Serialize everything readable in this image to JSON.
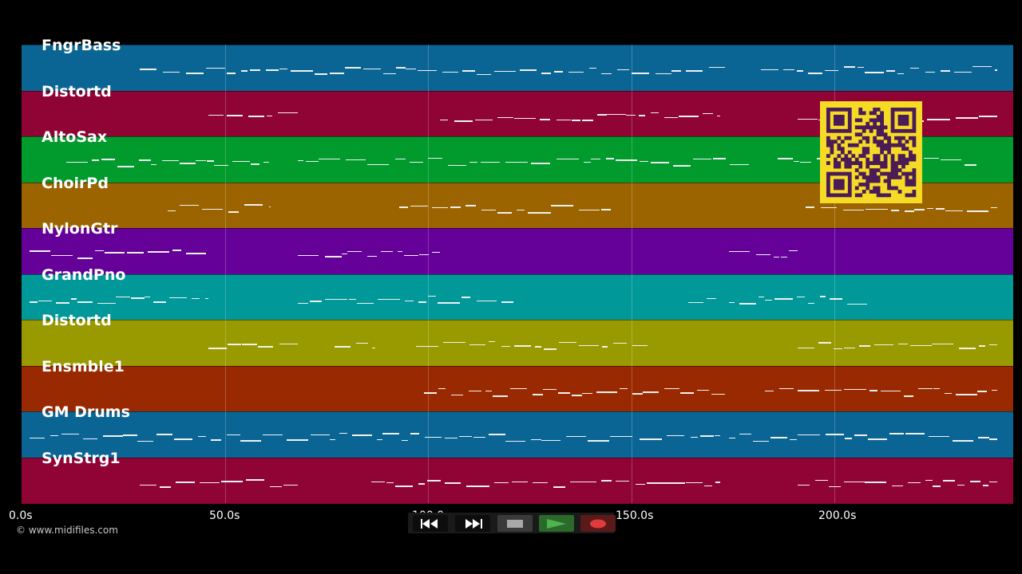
{
  "colors": {
    "background": "#000000",
    "note": "#f1f1f1",
    "qr_background": "#f6db26",
    "qr_module": "#4a1b57"
  },
  "timeline": {
    "unit": "s",
    "start": 0,
    "end": 243.8,
    "tick_labels": [
      "0.0s",
      "50.0s",
      "100.0s",
      "150.0s",
      "200.0s"
    ],
    "tick_values": [
      0,
      50,
      100,
      150,
      200
    ]
  },
  "tracks": [
    {
      "name": "FngrBass",
      "color": "#0a6595",
      "segments": [
        [
          29,
          173
        ],
        [
          182,
          240
        ]
      ]
    },
    {
      "name": "Distortd",
      "color": "#8f0335",
      "segments": [
        [
          46,
          68
        ],
        [
          103,
          144
        ],
        [
          144,
          172
        ],
        [
          191,
          240
        ]
      ]
    },
    {
      "name": "AltoSax",
      "color": "#019a2d",
      "segments": [
        [
          11,
          61
        ],
        [
          68,
          140
        ],
        [
          140,
          180
        ],
        [
          186,
          235
        ]
      ]
    },
    {
      "name": "ChoirPd",
      "color": "#9c6400",
      "segments": [
        [
          36,
          61
        ],
        [
          93,
          145
        ],
        [
          193,
          240
        ]
      ]
    },
    {
      "name": "NylonGtr",
      "color": "#650198",
      "segments": [
        [
          2,
          46
        ],
        [
          68,
          103
        ],
        [
          174,
          191
        ]
      ]
    },
    {
      "name": "GrandPno",
      "color": "#009898",
      "segments": [
        [
          2,
          46
        ],
        [
          68,
          121
        ],
        [
          164,
          171
        ],
        [
          174,
          208
        ]
      ]
    },
    {
      "name": "Distortd",
      "color": "#999a00",
      "segments": [
        [
          46,
          68
        ],
        [
          77,
          87
        ],
        [
          97,
          154
        ],
        [
          191,
          240
        ]
      ]
    },
    {
      "name": "Ensmble1",
      "color": "#992900",
      "segments": [
        [
          99,
          138
        ],
        [
          138,
          173
        ],
        [
          183,
          190
        ],
        [
          191,
          240
        ]
      ]
    },
    {
      "name": "GM Drums",
      "color": "#0a6595",
      "segments": [
        [
          2,
          172
        ],
        [
          174,
          240
        ]
      ]
    },
    {
      "name": "SynStrg1",
      "color": "#8f0335",
      "segments": [
        [
          29,
          68
        ],
        [
          86,
          172
        ],
        [
          191,
          240
        ]
      ]
    }
  ],
  "copyright": "© www.midifiles.com",
  "transport": {
    "buttons": [
      {
        "icon": "rewind-icon",
        "color": "#0d0d0d"
      },
      {
        "icon": "fast-forward-icon",
        "color": "#0d0d0d"
      },
      {
        "icon": "stop-icon",
        "color": "#3a3a3a"
      },
      {
        "icon": "play-icon",
        "color": "#2a6a2a"
      },
      {
        "icon": "record-icon",
        "color": "#5a1a1a"
      }
    ]
  }
}
